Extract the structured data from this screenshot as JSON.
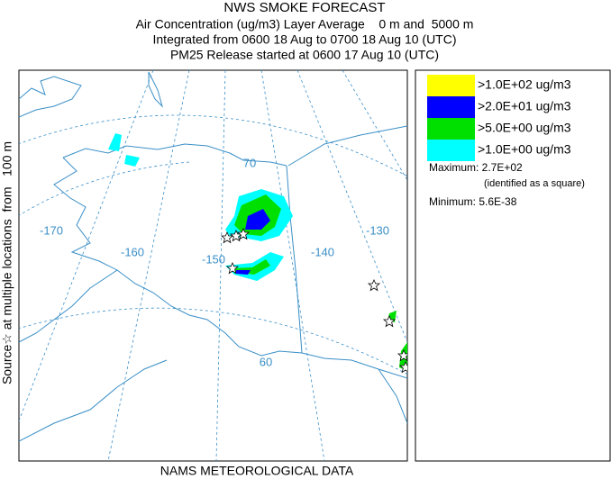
{
  "header": {
    "title": "NWS SMOKE FORECAST",
    "lines": [
      "Air Concentration (ug/m3) Layer Average    0 m and  5000 m",
      "Integrated from 0600 18 Aug to 0700 18 Aug 10 (UTC)",
      "PM25 Release started at 0600 17 Aug 10 (UTC)"
    ]
  },
  "side_label": "Source☆ at multiple locations  from   100 m",
  "footer": "NAMS METEOROLOGICAL DATA",
  "map": {
    "labels": [
      "70",
      "-170",
      "-160",
      "-150",
      "-140",
      "-130",
      "60"
    ]
  },
  "legend": {
    "items": [
      {
        "label": ">1.0E+02 ug/m3",
        "color": "#ffff00"
      },
      {
        "label": ">2.0E+01 ug/m3",
        "color": "#0000ff"
      },
      {
        "label": ">5.0E+00 ug/m3",
        "color": "#00e000"
      },
      {
        "label": ">1.0E+00 ug/m3",
        "color": "#00ffff"
      }
    ],
    "maximum": "Maximum: 2.7E+02",
    "maximum_note": "(identified as a square)",
    "minimum": "Minimum: 5.6E-38"
  }
}
